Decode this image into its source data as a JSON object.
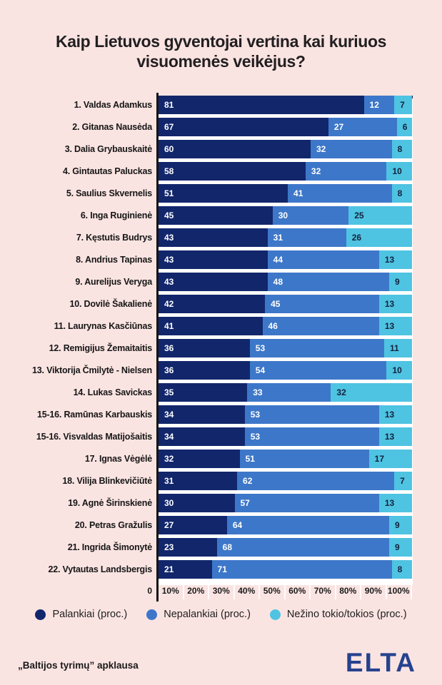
{
  "title": {
    "line1": "Kaip Lietuvos gyventojai vertina kai kuriuos",
    "line2": "visuomenės veikėjus?"
  },
  "chart_data": {
    "type": "bar",
    "orientation": "horizontal",
    "stacked": true,
    "x_range": [
      0,
      100
    ],
    "categories": [
      "1. Valdas Adamkus",
      "2. Gitanas Nausėda",
      "3. Dalia Grybauskaitė",
      "4. Gintautas Paluckas",
      "5. Saulius Skvernelis",
      "6. Inga Ruginienė",
      "7. Kęstutis Budrys",
      "8. Andrius Tapinas",
      "9. Aurelijus Veryga",
      "10. Dovilė Šakalienė",
      "11. Laurynas Kasčiūnas",
      "12. Remigijus Žemaitaitis",
      "13. Viktorija Čmilytė - Nielsen",
      "14. Lukas Savickas",
      "15-16. Ramūnas Karbauskis",
      "15-16. Visvaldas Matijošaitis",
      "17. Ignas Vėgėlė",
      "18. Vilija Blinkevičiūtė",
      "19. Agnė Širinskienė",
      "20. Petras Gražulis",
      "21. Ingrida Šimonytė",
      "22. Vytautas Landsbergis"
    ],
    "series": [
      {
        "name": "Palankiai (proc.)",
        "color": "#12266B",
        "values": [
          81,
          67,
          60,
          58,
          51,
          45,
          43,
          43,
          43,
          42,
          41,
          36,
          36,
          35,
          34,
          34,
          32,
          31,
          30,
          27,
          23,
          21
        ]
      },
      {
        "name": "Nepalankiai (proc.)",
        "color": "#3D77C9",
        "values": [
          12,
          27,
          32,
          32,
          41,
          30,
          31,
          44,
          48,
          45,
          46,
          53,
          54,
          33,
          53,
          53,
          51,
          62,
          57,
          64,
          68,
          71
        ]
      },
      {
        "name": "Nežino tokio/tokios (proc.)",
        "color": "#4FC3E2",
        "values": [
          7,
          6,
          8,
          10,
          8,
          25,
          26,
          13,
          9,
          13,
          13,
          11,
          10,
          32,
          13,
          13,
          17,
          7,
          13,
          9,
          9,
          8
        ]
      }
    ],
    "axis": {
      "zero_label": "0",
      "ticks": [
        "10%",
        "20%",
        "30%",
        "40%",
        "50%",
        "60%",
        "70%",
        "80%",
        "90%",
        "100%"
      ]
    },
    "legend_position": "bottom"
  },
  "footer": {
    "source": "„Baltijos tyrimų” apklausa",
    "logo": "ELTA"
  },
  "colors": {
    "background": "#FAE4E2",
    "bar_navy": "#12266B",
    "bar_blue": "#3D77C9",
    "bar_cyan": "#4FC3E2",
    "value_label_light": "#FFFFFF",
    "value_label_dark": "#14223C",
    "plot_top_border": "#0F1F55",
    "axis_line": "#151515",
    "logo": "#26428E"
  }
}
